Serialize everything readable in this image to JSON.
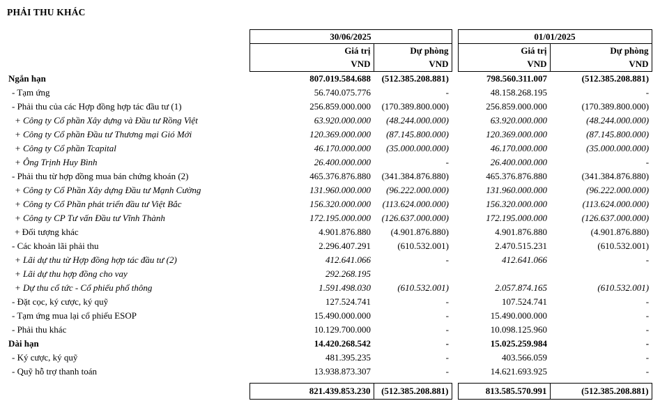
{
  "page": {
    "title": "PHẢI THU KHÁC"
  },
  "table": {
    "groups": [
      {
        "date": "30/06/2025",
        "value_header": "Giá trị",
        "provision_header": "Dự phòng",
        "unit": "VND"
      },
      {
        "date": "01/01/2025",
        "value_header": "Giá trị",
        "provision_header": "Dự phòng",
        "unit": "VND"
      }
    ],
    "rows": [
      {
        "label": "Ngắn hạn",
        "v1": "807.019.584.688",
        "p1": "(512.385.208.881)",
        "v2": "798.560.311.007",
        "p2": "(512.385.208.881)"
      },
      {
        "label": "- Tạm ứng",
        "v1": "56.740.075.776",
        "p1": "-",
        "v2": "48.158.268.195",
        "p2": "-"
      },
      {
        "label": "- Phải thu của các Hợp đồng hợp tác đầu tư (1)",
        "v1": "256.859.000.000",
        "p1": "(170.389.800.000)",
        "v2": "256.859.000.000",
        "p2": "(170.389.800.000)"
      },
      {
        "label": "+ Công ty Cổ phần Xây dựng và Đầu tư Rồng Việt",
        "v1": "63.920.000.000",
        "p1": "(48.244.000.000)",
        "v2": "63.920.000.000",
        "p2": "(48.244.000.000)"
      },
      {
        "label": "+ Công ty Cổ phần Đầu tư Thương mại Gió Mới",
        "v1": "120.369.000.000",
        "p1": "(87.145.800.000)",
        "v2": "120.369.000.000",
        "p2": "(87.145.800.000)"
      },
      {
        "label": "+ Công ty Cổ phần Tcapital",
        "v1": "46.170.000.000",
        "p1": "(35.000.000.000)",
        "v2": "46.170.000.000",
        "p2": "(35.000.000.000)"
      },
      {
        "label": "+ Ông Trịnh Huy Bình",
        "v1": "26.400.000.000",
        "p1": "-",
        "v2": "26.400.000.000",
        "p2": "-"
      },
      {
        "label": "- Phải thu từ hợp đồng mua bán chứng khoán (2)",
        "v1": "465.376.876.880",
        "p1": "(341.384.876.880)",
        "v2": "465.376.876.880",
        "p2": "(341.384.876.880)"
      },
      {
        "label": "+ Công ty Cổ Phần Xây dựng Đầu tư Mạnh Cường",
        "v1": "131.960.000.000",
        "p1": "(96.222.000.000)",
        "v2": "131.960.000.000",
        "p2": "(96.222.000.000)"
      },
      {
        "label": "+ Công ty Cổ Phần phát triển đầu tư Việt Bắc",
        "v1": "156.320.000.000",
        "p1": "(113.624.000.000)",
        "v2": "156.320.000.000",
        "p2": "(113.624.000.000)"
      },
      {
        "label": "+ Công ty CP Tư vấn Đầu tư Vĩnh Thành",
        "v1": "172.195.000.000",
        "p1": "(126.637.000.000)",
        "v2": "172.195.000.000",
        "p2": "(126.637.000.000)"
      },
      {
        "label": "+ Đối tượng khác",
        "v1": "4.901.876.880",
        "p1": "(4.901.876.880)",
        "v2": "4.901.876.880",
        "p2": "(4.901.876.880)"
      },
      {
        "label": "- Các khoản lãi phải thu",
        "v1": "2.296.407.291",
        "p1": "(610.532.001)",
        "v2": "2.470.515.231",
        "p2": "(610.532.001)"
      },
      {
        "label": "+ Lãi dự thu từ Hợp đồng hợp tác đầu tư (2)",
        "v1": "412.641.066",
        "p1": "-",
        "v2": "412.641.066",
        "p2": "-"
      },
      {
        "label": "+ Lãi dự thu hợp đồng cho vay",
        "v1": "292.268.195",
        "p1": "",
        "v2": "",
        "p2": ""
      },
      {
        "label": "+ Dự thu cổ tức - Cổ phiếu phổ thông",
        "v1": "1.591.498.030",
        "p1": "(610.532.001)",
        "v2": "2.057.874.165",
        "p2": "(610.532.001)"
      },
      {
        "label": "- Đặt cọc, ký cược, ký quỹ",
        "v1": "127.524.741",
        "p1": "-",
        "v2": "107.524.741",
        "p2": "-"
      },
      {
        "label": "- Tạm ứng mua lại cổ phiếu ESOP",
        "v1": "15.490.000.000",
        "p1": "-",
        "v2": "15.490.000.000",
        "p2": "-"
      },
      {
        "label": "- Phải thu khác",
        "v1": "10.129.700.000",
        "p1": "-",
        "v2": "10.098.125.960",
        "p2": "-"
      },
      {
        "label": "Dài hạn",
        "v1": "14.420.268.542",
        "p1": "-",
        "v2": "15.025.259.984",
        "p2": "-"
      },
      {
        "label": "- Ký cược, ký quỹ",
        "v1": "481.395.235",
        "p1": "-",
        "v2": "403.566.059",
        "p2": "-"
      },
      {
        "label": "- Quỹ hỗ trợ thanh toán",
        "v1": "13.938.873.307",
        "p1": "-",
        "v2": "14.621.693.925",
        "p2": "-"
      }
    ],
    "total": {
      "v1": "821.439.853.230",
      "p1": "(512.385.208.881)",
      "v2": "813.585.570.991",
      "p2": "(512.385.208.881)"
    }
  }
}
